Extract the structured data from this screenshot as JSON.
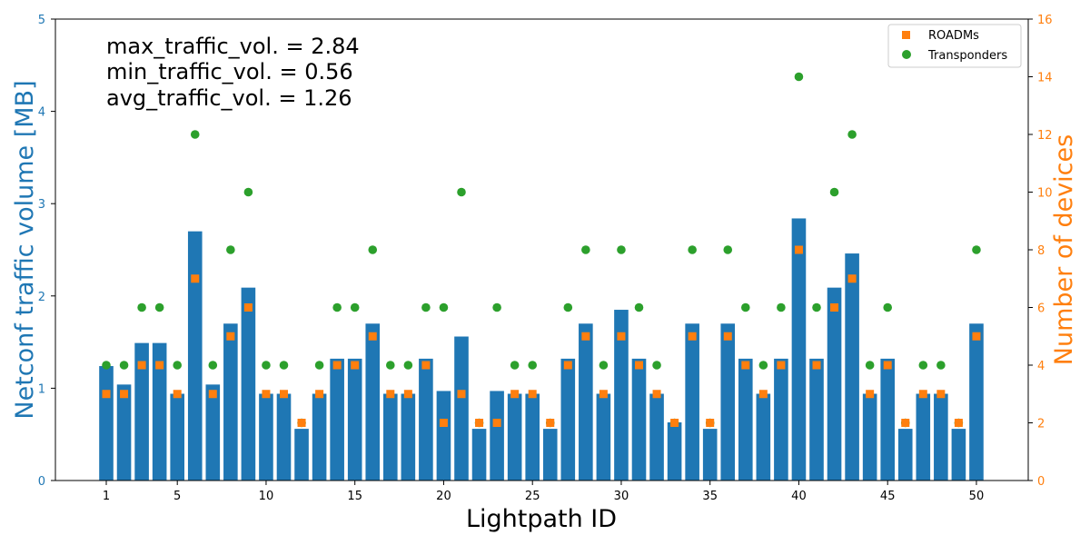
{
  "chart_data": {
    "type": "bar",
    "xlabel": "Lightpath ID",
    "ylabel_left": "Netconf traffic volume [MB]",
    "ylabel_right": "Number of devices",
    "ylim_left": [
      0,
      5
    ],
    "ylim_right": [
      0,
      16
    ],
    "x_ticks": [
      1,
      5,
      10,
      15,
      20,
      25,
      30,
      35,
      40,
      45,
      50
    ],
    "y_ticks_left": [
      0,
      1,
      2,
      3,
      4,
      5
    ],
    "y_ticks_right": [
      0,
      2,
      4,
      6,
      8,
      10,
      12,
      14,
      16
    ],
    "grid": false,
    "legend_placement": "top-right",
    "annotations": [
      "max_traffic_vol. = 2.84",
      "min_traffic_vol. = 0.56",
      "avg_traffic_vol. = 1.26"
    ],
    "colors": {
      "bars": "#1f77b4",
      "left_axis": "#1f77b4",
      "right_axis": "#ff7f0e",
      "roadms": "#ff7f0e",
      "transponders": "#2ca02c"
    },
    "categories": [
      1,
      2,
      3,
      4,
      5,
      6,
      7,
      8,
      9,
      10,
      11,
      12,
      13,
      14,
      15,
      16,
      17,
      18,
      19,
      20,
      21,
      22,
      23,
      24,
      25,
      26,
      27,
      28,
      29,
      30,
      31,
      32,
      33,
      34,
      35,
      36,
      37,
      38,
      39,
      40,
      41,
      42,
      43,
      44,
      45,
      46,
      47,
      48,
      49,
      50
    ],
    "bar_series": {
      "name": "Netconf traffic volume",
      "axis": "left",
      "values": [
        1.24,
        1.04,
        1.49,
        1.49,
        0.94,
        2.7,
        1.04,
        1.7,
        2.09,
        0.94,
        0.94,
        0.56,
        0.94,
        1.32,
        1.32,
        1.7,
        0.94,
        0.94,
        1.32,
        0.97,
        1.56,
        0.56,
        0.97,
        0.94,
        0.94,
        0.56,
        1.32,
        1.7,
        0.94,
        1.85,
        1.32,
        0.94,
        0.63,
        1.7,
        0.56,
        1.7,
        1.32,
        0.94,
        1.32,
        2.84,
        1.32,
        2.09,
        2.46,
        0.94,
        1.32,
        0.56,
        0.94,
        0.94,
        0.56,
        1.7
      ]
    },
    "series": [
      {
        "name": "ROADMs",
        "axis": "right",
        "marker": "square",
        "values": [
          3,
          3,
          4,
          4,
          3,
          7,
          3,
          5,
          6,
          3,
          3,
          2,
          3,
          4,
          4,
          5,
          3,
          3,
          4,
          2,
          3,
          2,
          2,
          3,
          3,
          2,
          4,
          5,
          3,
          5,
          4,
          3,
          2,
          5,
          2,
          5,
          4,
          3,
          4,
          8,
          4,
          6,
          7,
          3,
          4,
          2,
          3,
          3,
          2,
          5
        ]
      },
      {
        "name": "Transponders",
        "axis": "right",
        "marker": "circle",
        "values": [
          4,
          4,
          6,
          6,
          4,
          12,
          4,
          8,
          10,
          4,
          4,
          2,
          4,
          6,
          6,
          8,
          4,
          4,
          6,
          6,
          10,
          2,
          6,
          4,
          4,
          2,
          6,
          8,
          4,
          8,
          6,
          4,
          2,
          8,
          2,
          8,
          6,
          4,
          6,
          14,
          6,
          10,
          12,
          4,
          6,
          2,
          4,
          4,
          2,
          8
        ]
      }
    ]
  }
}
